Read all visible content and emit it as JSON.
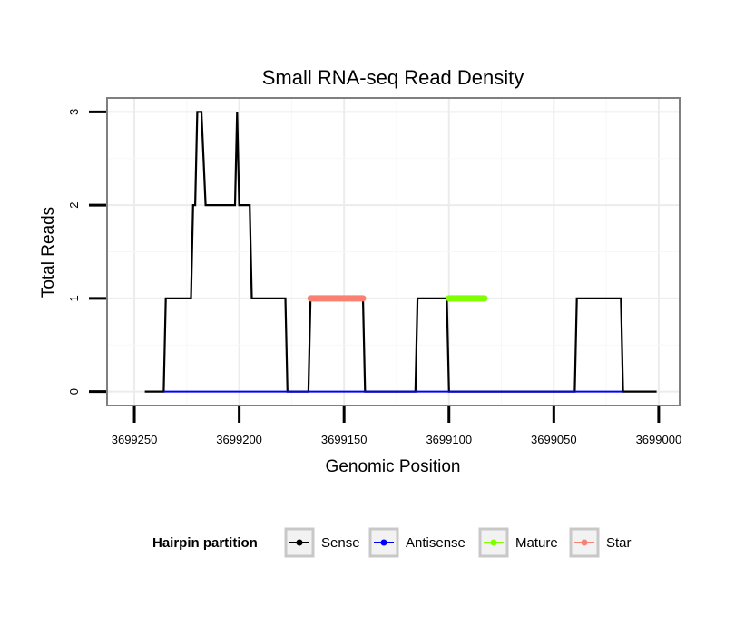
{
  "chart_data": {
    "type": "line",
    "title": "Small RNA-seq Read Density",
    "xlabel": "Genomic Position",
    "ylabel": "Total Reads",
    "xlim": [
      3699263,
      3698990
    ],
    "x_reversed": true,
    "ylim": [
      -0.15,
      3.15
    ],
    "x_ticks": [
      3699250,
      3699200,
      3699150,
      3699100,
      3699050,
      3699000
    ],
    "x_tick_labels": [
      "3699250",
      "3699200",
      "3699150",
      "3699100",
      "3699050",
      "3699000"
    ],
    "y_ticks": [
      0,
      1,
      2,
      3
    ],
    "y_tick_labels": [
      "0",
      "1",
      "2",
      "3"
    ],
    "grid": true,
    "legend": {
      "title": "Hairpin partition",
      "position": "bottom",
      "entries": [
        {
          "label": "Sense",
          "color": "#000000"
        },
        {
          "label": "Antisense",
          "color": "#0000ff"
        },
        {
          "label": "Mature",
          "color": "#7fff00"
        },
        {
          "label": "Star",
          "color": "#fa8072"
        }
      ]
    },
    "series": [
      {
        "name": "Sense",
        "color": "#000000",
        "x": [
          3699245,
          3699236,
          3699235,
          3699223,
          3699222,
          3699221,
          3699220,
          3699218,
          3699216,
          3699202,
          3699201,
          3699200,
          3699199,
          3699195,
          3699194,
          3699178,
          3699177,
          3699176,
          3699167,
          3699166,
          3699141,
          3699140,
          3699116,
          3699115,
          3699101,
          3699100,
          3699083,
          3699082,
          3699040,
          3699039,
          3699018,
          3699017,
          3699001
        ],
        "values": [
          0,
          0,
          1,
          1,
          2,
          2,
          3,
          3,
          2,
          2,
          3,
          2,
          2,
          2,
          1,
          1,
          0,
          0,
          0,
          1,
          1,
          0,
          0,
          1,
          1,
          0,
          0,
          0,
          0,
          1,
          1,
          0,
          0
        ]
      },
      {
        "name": "Antisense",
        "color": "#0000ff",
        "x": [
          3699236,
          3699017
        ],
        "values": [
          0,
          0
        ]
      },
      {
        "name": "Mature",
        "color": "#7fff00",
        "x": [
          3699100,
          3699083
        ],
        "values": [
          1,
          1
        ]
      },
      {
        "name": "Star",
        "color": "#fa8072",
        "x": [
          3699166,
          3699141
        ],
        "values": [
          1,
          1
        ]
      }
    ]
  }
}
